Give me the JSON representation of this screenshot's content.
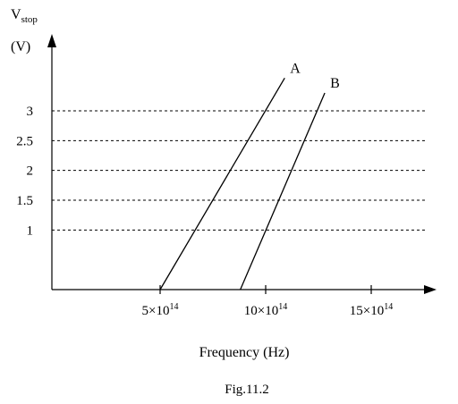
{
  "figure": {
    "caption": "Fig.11.2"
  },
  "chart_data": {
    "type": "line",
    "ylabel": {
      "main": "V",
      "sub": "stop",
      "unit": "(V)"
    },
    "xlabel": "Frequency (Hz)",
    "xlim": [
      0,
      15.7
    ],
    "ylim": [
      0,
      3.5
    ],
    "x_unit_exponent": 14,
    "x_ticks": [
      {
        "value": 5,
        "mantissa": "5",
        "times": "×",
        "base": "10",
        "exp": "14"
      },
      {
        "value": 10,
        "mantissa": "10",
        "times": "×",
        "base": "10",
        "exp": "14"
      },
      {
        "value": 15,
        "mantissa": "15",
        "times": "×",
        "base": "10",
        "exp": "14"
      }
    ],
    "y_ticks": [
      {
        "value": 1,
        "label": "1"
      },
      {
        "value": 1.5,
        "label": "1.5"
      },
      {
        "value": 2,
        "label": "2"
      },
      {
        "value": 2.5,
        "label": "2.5"
      },
      {
        "value": 3,
        "label": "3"
      }
    ],
    "grid": "dashed horizontal lines at y ticks",
    "series": [
      {
        "name": "A",
        "x": [
          5.0,
          10.9
        ],
        "y": [
          0,
          3.55
        ]
      },
      {
        "name": "B",
        "x": [
          8.8,
          12.8
        ],
        "y": [
          0,
          3.3
        ]
      }
    ]
  }
}
